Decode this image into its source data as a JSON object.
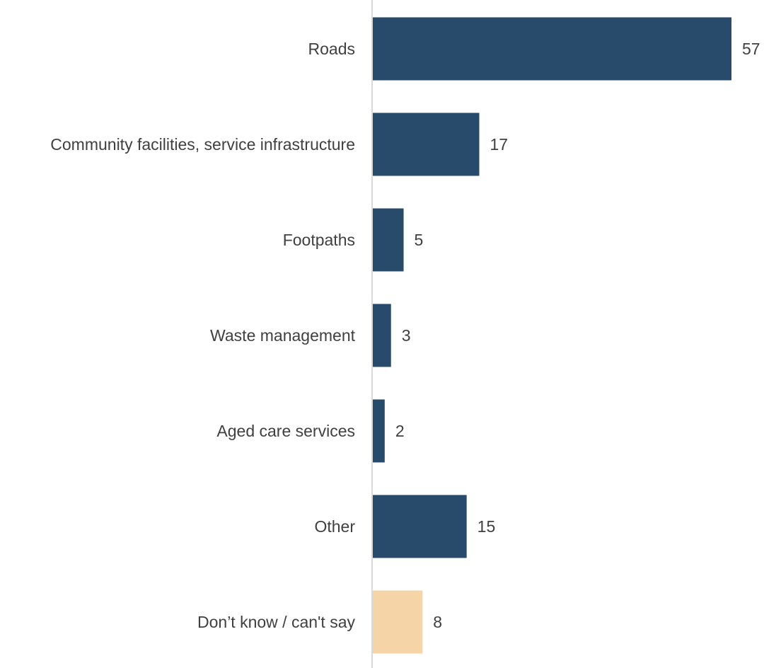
{
  "chart_data": {
    "type": "bar",
    "orientation": "horizontal",
    "title": "",
    "xlabel": "",
    "ylabel": "",
    "categories": [
      "Roads",
      "Community facilities, service infrastructure",
      "Footpaths",
      "Waste management",
      "Aged care services",
      "Other",
      "Don’t know / can't say"
    ],
    "values": [
      57,
      17,
      5,
      3,
      2,
      15,
      8
    ],
    "bar_colors": [
      "#284b6c",
      "#284b6c",
      "#284b6c",
      "#284b6c",
      "#284b6c",
      "#284b6c",
      "#f5d4a8"
    ],
    "value_labels": [
      "57",
      "17",
      "5",
      "3",
      "2",
      "15",
      "8"
    ],
    "xlim": [
      0,
      57
    ],
    "grid": false,
    "legend": "none",
    "axis_line_color": "#d9d9d9",
    "label_color": "#404040"
  }
}
